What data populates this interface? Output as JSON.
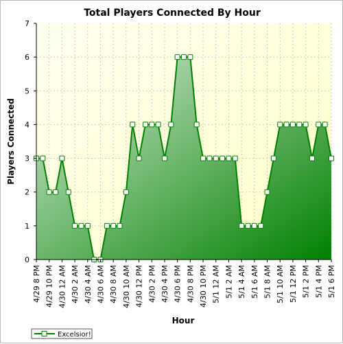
{
  "chart_data": {
    "type": "area",
    "title": "Total Players Connected By Hour",
    "xlabel": "Hour",
    "ylabel": "Players Connected",
    "ylim": [
      0,
      7
    ],
    "yticks": [
      0,
      1,
      2,
      3,
      4,
      5,
      6,
      7
    ],
    "grid": true,
    "legend_position": "bottom-left",
    "x_tick_labels": [
      "4/29 8 PM",
      "4/29 10 PM",
      "4/30 12 AM",
      "4/30 2 AM",
      "4/30 4 AM",
      "4/30 6 AM",
      "4/30 8 AM",
      "4/30 10 AM",
      "4/30 12 PM",
      "4/30 2 PM",
      "4/30 4 PM",
      "4/30 6 PM",
      "4/30 8 PM",
      "4/30 10 PM",
      "5/1 12 AM",
      "5/1 2 AM",
      "5/1 4 AM",
      "5/1 6 AM",
      "5/1 8 AM",
      "5/1 10 AM",
      "5/1 12 PM",
      "5/1 2 PM",
      "5/1 4 PM",
      "5/1 6 PM"
    ],
    "series": [
      {
        "name": "Excelsior!",
        "color": "#008000",
        "values": [
          3,
          3,
          2,
          2,
          3,
          2,
          1,
          1,
          1,
          0,
          0,
          1,
          1,
          1,
          2,
          4,
          3,
          4,
          4,
          4,
          3,
          4,
          6,
          6,
          6,
          4,
          3,
          3,
          3,
          3,
          3,
          3,
          1,
          1,
          1,
          1,
          2,
          3,
          4,
          4,
          4,
          4,
          4,
          3,
          4,
          4,
          3
        ]
      }
    ]
  },
  "colors": {
    "plot_background_top": "#fffff0",
    "plot_background_bottom": "#ffffc8",
    "line": "#008000",
    "fill_light": "#d9ecd9",
    "fill_dark": "#008000",
    "grid": "#c8c8c8"
  }
}
